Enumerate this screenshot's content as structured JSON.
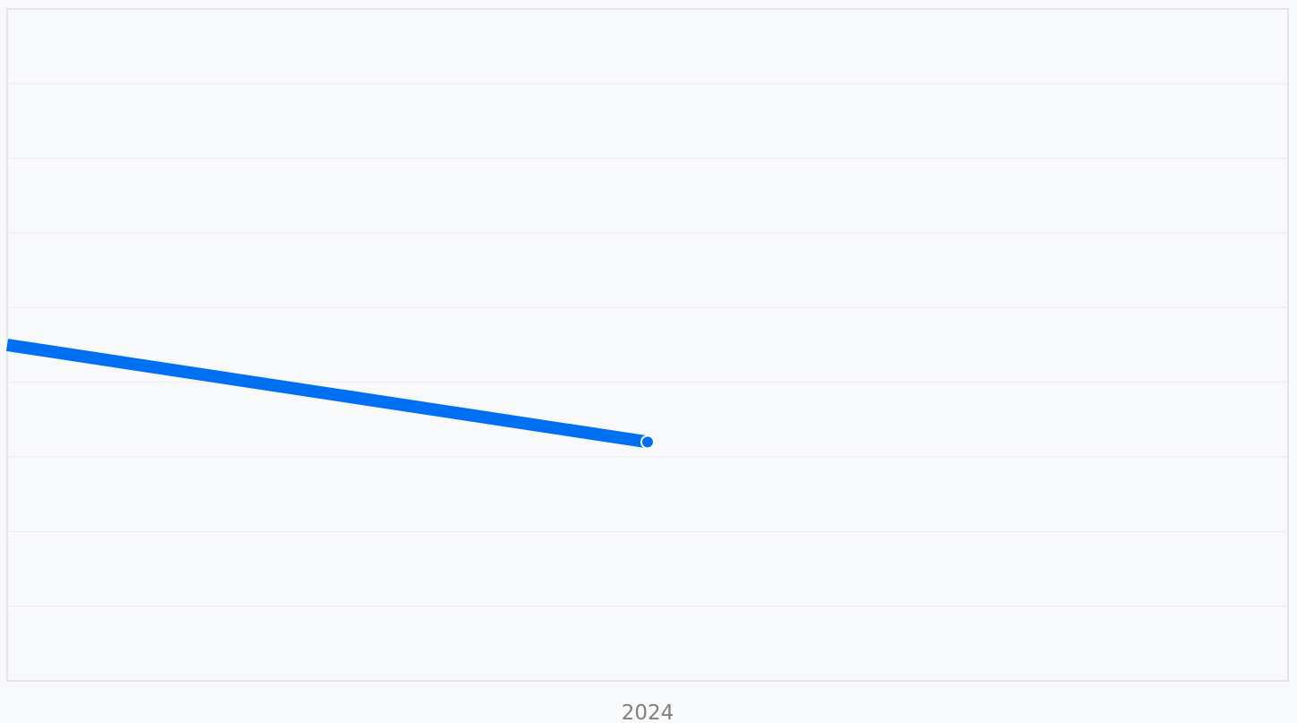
{
  "chart_data": {
    "type": "line",
    "title": "",
    "xlabel": "",
    "ylabel": "",
    "x_ticks": [
      "2024"
    ],
    "grid": true,
    "ylim": [
      0,
      9
    ],
    "series": [
      {
        "color": "#0070f3",
        "points": [
          {
            "x": 2023,
            "y": 4.5
          },
          {
            "x": 2024,
            "y": 3.2
          }
        ]
      }
    ],
    "xlim": [
      2023,
      2025
    ]
  }
}
